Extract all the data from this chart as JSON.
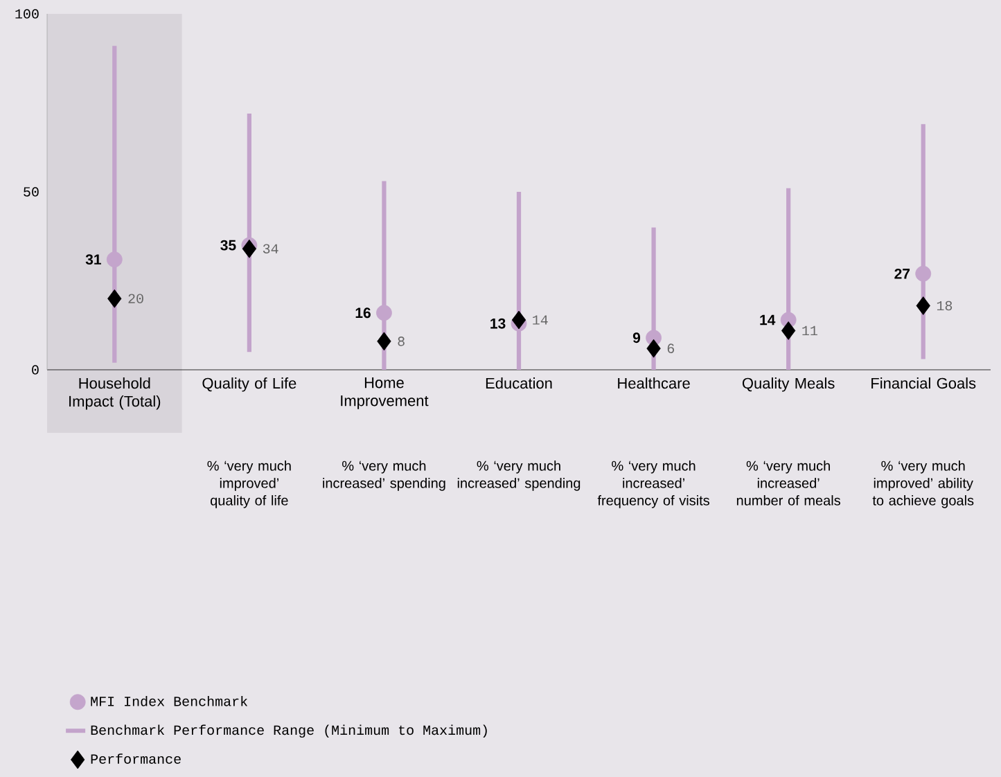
{
  "chart_data": {
    "type": "scatter",
    "categories": [
      "Household Impact (Total)",
      "Quality of Life",
      "Home Improvement",
      "Education",
      "Healthcare",
      "Quality Meals",
      "Financial Goals"
    ],
    "series": [
      {
        "name": "MFI Index Benchmark",
        "marker": "circle",
        "color": "#c4a5cc",
        "values": [
          31,
          35,
          16,
          13,
          9,
          14,
          27
        ],
        "value_labels": [
          "31",
          "35",
          "16",
          "13",
          "9",
          "14",
          "27"
        ]
      },
      {
        "name": "Benchmark Performance Range (Minimum to Maximum)",
        "type": "bar",
        "color": "#c3a3cb",
        "base": [
          2,
          5,
          0,
          0,
          0,
          0,
          3
        ],
        "values": [
          89,
          67,
          53,
          50,
          40,
          51,
          66
        ]
      },
      {
        "name": "Performance",
        "marker": "diamond",
        "color": "#000000",
        "values": [
          20,
          34,
          8,
          14,
          6,
          11,
          18
        ],
        "value_labels": [
          "20",
          "34",
          "8",
          "14",
          "6",
          "11",
          "18"
        ]
      }
    ],
    "ylim": [
      0,
      100
    ],
    "yticks": [
      0,
      50,
      100
    ],
    "legend": "bottom left",
    "bands": [
      {
        "axis": "x",
        "from": "Household Impact (Total)",
        "to": "Household Impact (Total)",
        "color": "#d8d4da"
      }
    ],
    "annotations": [
      "% ‘very much improved’ quality of life",
      "% ‘very much increased’ spending",
      "% ‘very much increased’ spending",
      "% ‘very much increased’ frequency of visits",
      "% ‘very much increased’ number of meals",
      "% ‘very much improved’ ability to achieve goals"
    ]
  }
}
